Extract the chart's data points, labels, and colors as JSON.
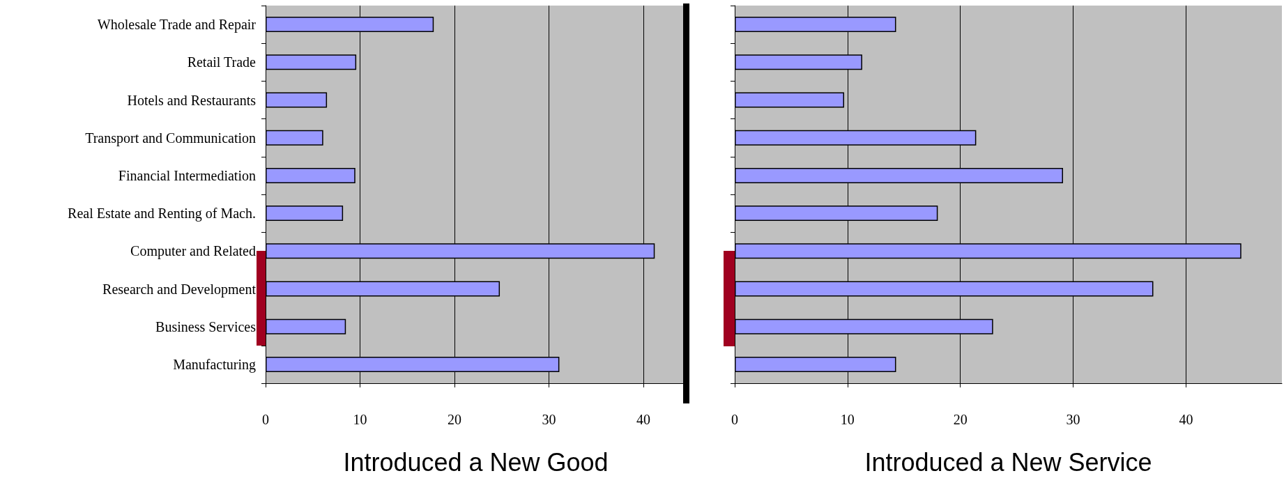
{
  "chart_data": [
    {
      "type": "bar",
      "orientation": "horizontal",
      "xlabel": "Introduced a New Good",
      "categories": [
        "Wholesale Trade and Repair",
        "Retail Trade",
        "Hotels and Restaurants",
        "Transport and Communication",
        "Financial Intermediation",
        "Real Estate and Renting of Mach.",
        "Computer and Related",
        "Research and Development",
        "Business Services",
        "Manufacturing"
      ],
      "values": [
        17.8,
        9.6,
        6.5,
        6.1,
        9.5,
        8.2,
        41.2,
        24.8,
        8.5,
        31.1
      ],
      "color": "#9999ff",
      "xlim": [
        0,
        44.5
      ],
      "xticks": [
        0,
        10,
        20,
        30,
        40
      ],
      "grid": "x"
    },
    {
      "type": "bar",
      "orientation": "horizontal",
      "xlabel": "Introduced a New Service",
      "categories": [
        null,
        null,
        null,
        null,
        null,
        null,
        null,
        null,
        null,
        null
      ],
      "values": [
        14.3,
        11.3,
        9.7,
        21.4,
        29.1,
        18.0,
        44.9,
        37.1,
        22.9,
        14.3
      ],
      "color": "#9999ff",
      "xlim": [
        0,
        48.5
      ],
      "xticks": [
        0,
        10,
        20,
        30,
        40
      ],
      "grid": "x"
    }
  ]
}
